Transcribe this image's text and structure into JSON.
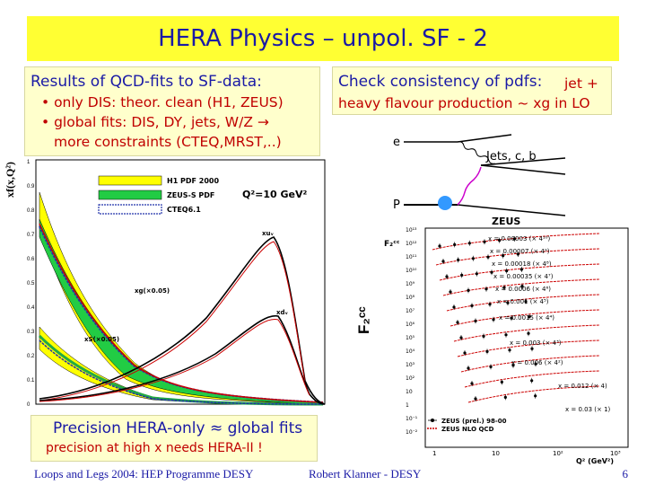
{
  "title": "HERA Physics – unpol. SF - 2",
  "left_panel": {
    "heading": "Results of QCD-fits to SF-data:",
    "bullet1": "• only DIS: theor. clean (H1, ZEUS)",
    "bullet2a": "• global fits: DIS, DY, jets, W/Z →",
    "bullet2b": "more constraints (CTEQ,MRST,..)"
  },
  "right_panel": {
    "heading_a": "Check consistency of pdfs:",
    "heading_b": "jet +",
    "line2": "heavy flavour production ~ xg in LO"
  },
  "precision": {
    "line1": "Precision HERA-only ≈ global fits",
    "line2": "precision at high x needs HERA-II !"
  },
  "pdf_plot": {
    "ylabel": "xf(x,Q²)",
    "legend": [
      "H1 PDF 2000",
      "ZEUS-S PDF",
      "CTEQ6.1"
    ],
    "q2_label": "Q²=10 GeV²",
    "curve_labels": {
      "xuv": "xuᵥ",
      "xdv": "xdᵥ",
      "xg": "xg(×0.05)",
      "xs": "xS(×0.05)"
    },
    "yticks": [
      "1",
      "0.9",
      "0.8",
      "0.7",
      "0.6",
      "0.5",
      "0.4",
      "0.3",
      "0.2",
      "0.1",
      "0"
    ]
  },
  "diagram": {
    "e": "e",
    "p": "P",
    "jets": "Jets, c, b"
  },
  "f2cc_plot": {
    "experiment": "ZEUS",
    "ylabel": "F₂ᶜᶜ",
    "series": [
      "x = 0.00003 (× 4¹⁰)",
      "x = 0.00007 (× 4⁹)",
      "x = 0.00018 (× 4⁸)",
      "x = 0.00035 (× 4⁷)",
      "x = 0.0006 (× 4⁶)",
      "x = 0.001 (× 4⁵)",
      "x = 0.0015 (× 4⁴)",
      "x = 0.003 (× 4³)",
      "x = 0.006 (× 4²)",
      "x = 0.012 (× 4)",
      "x = 0.03 (× 1)"
    ],
    "legend": [
      "ZEUS (prel.) 98-00",
      "ZEUS NLO QCD"
    ],
    "xlabel": "Q² (GeV²)",
    "xticks": [
      "1",
      "10",
      "10²",
      "10³"
    ],
    "yticks": [
      "10¹³",
      "10¹²",
      "10¹¹",
      "10¹⁰",
      "10⁹",
      "10⁸",
      "10⁷",
      "10⁶",
      "10⁵",
      "10⁴",
      "10³",
      "10²",
      "10",
      "1",
      "10⁻¹",
      "10⁻²"
    ]
  },
  "footer": {
    "left": "Loops and Legs 2004: HEP Programme DESY",
    "center": "Robert Klanner - DESY",
    "page": "6"
  },
  "colors": {
    "title_bg": "#ffff33",
    "panel_bg": "#ffffcc",
    "text_blue": "#1a1aa6",
    "text_red": "#c00000"
  }
}
